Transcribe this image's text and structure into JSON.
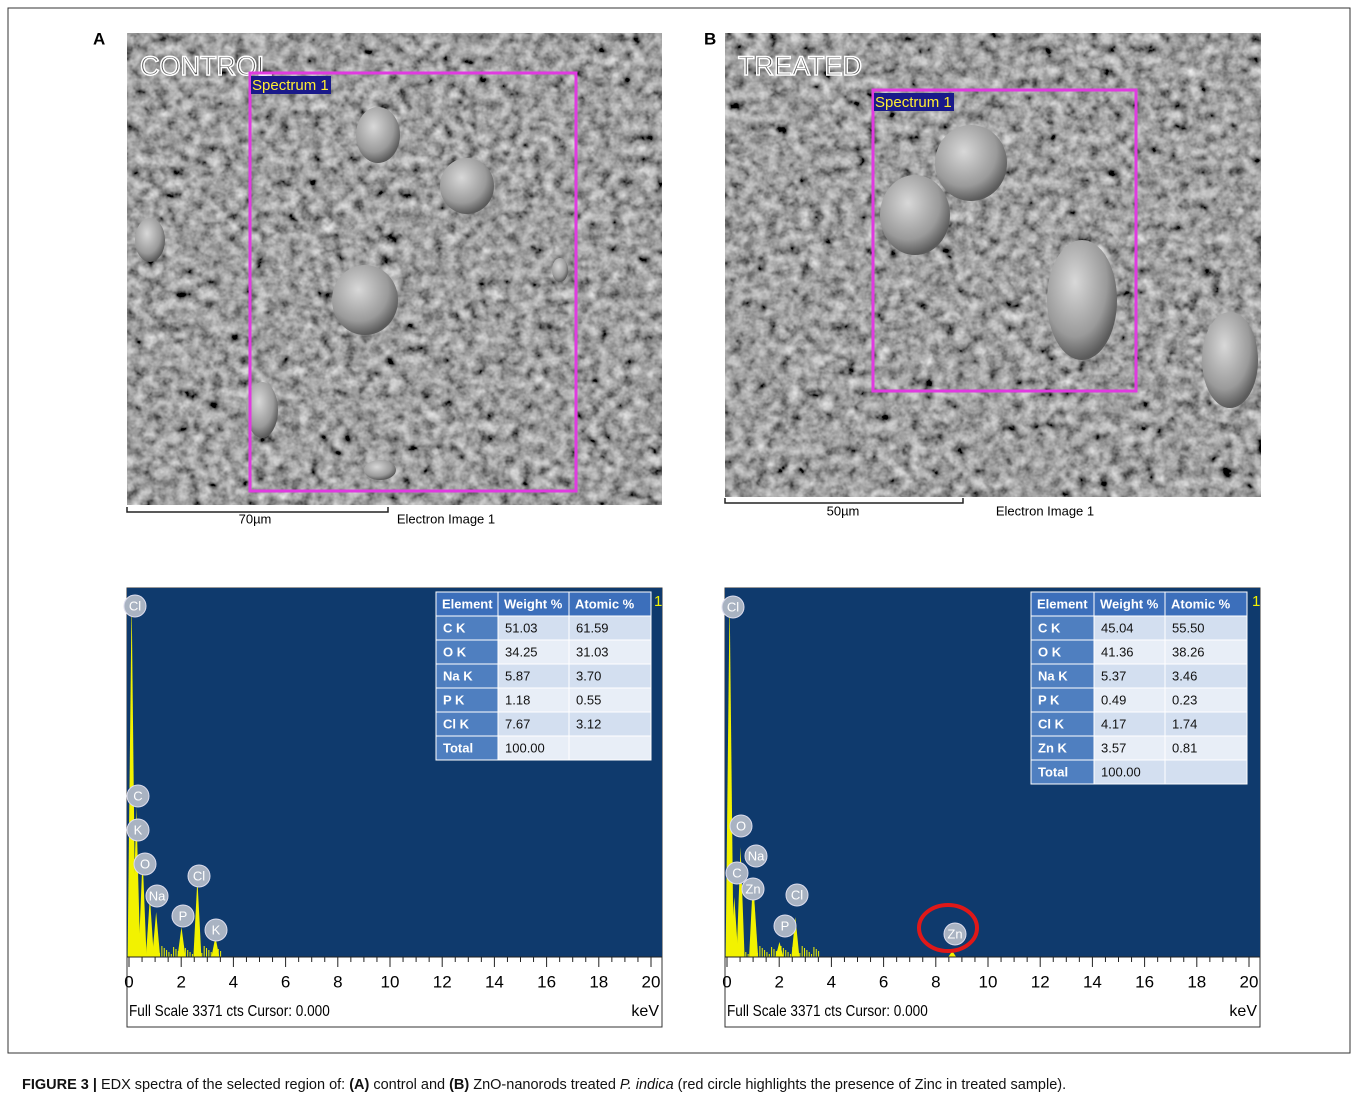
{
  "panels": [
    {
      "letter": "A",
      "sem": {
        "label": "CONTROL",
        "spectrum_label": "Spectrum 1",
        "scale_bar": "70µm",
        "image_name": "Electron Image 1"
      },
      "spectrum": {
        "table": {
          "columns": [
            "Element",
            "Weight %",
            "Atomic %"
          ],
          "rows": [
            [
              "C K",
              "51.03",
              "61.59"
            ],
            [
              "O K",
              "34.25",
              "31.03"
            ],
            [
              "Na K",
              "5.87",
              "3.70"
            ],
            [
              "P K",
              "1.18",
              "0.55"
            ],
            [
              "Cl K",
              "7.67",
              "3.12"
            ],
            [
              "Total",
              "100.00"
            ]
          ]
        },
        "corner_label": "1",
        "peak_labels": [
          "Cl",
          "C",
          "K",
          "O",
          "Na",
          "P",
          "Cl",
          "K"
        ],
        "x_ticks": [
          0,
          2,
          4,
          6,
          8,
          10,
          12,
          14,
          16,
          18,
          20
        ],
        "footer": "Full Scale 3371 cts Cursor: 0.000",
        "unit": "keV"
      }
    },
    {
      "letter": "B",
      "sem": {
        "label": "TREATED",
        "spectrum_label": "Spectrum 1",
        "scale_bar": "50µm",
        "image_name": "Electron Image 1"
      },
      "spectrum": {
        "table": {
          "columns": [
            "Element",
            "Weight %",
            "Atomic %"
          ],
          "rows": [
            [
              "C K",
              "45.04",
              "55.50"
            ],
            [
              "O K",
              "41.36",
              "38.26"
            ],
            [
              "Na K",
              "5.37",
              "3.46"
            ],
            [
              "P K",
              "0.49",
              "0.23"
            ],
            [
              "Cl K",
              "4.17",
              "1.74"
            ],
            [
              "Zn K",
              "3.57",
              "0.81"
            ],
            [
              "Total",
              "100.00"
            ]
          ]
        },
        "corner_label": "1",
        "peak_labels": [
          "Cl",
          "O",
          "Na",
          "C",
          "Zn",
          "P",
          "Cl",
          "Zn"
        ],
        "x_ticks": [
          0,
          2,
          4,
          6,
          8,
          10,
          12,
          14,
          16,
          18,
          20
        ],
        "footer": "Full Scale 3371 cts Cursor: 0.000",
        "unit": "keV"
      }
    }
  ],
  "caption": [
    "FIGURE 3 |",
    "EDX spectra of the selected region of:",
    "(A)",
    "control and",
    "(B)",
    "ZnO-nanorods treated",
    "P. indica",
    "(red circle highlights the presence of Zinc in treated sample)."
  ]
}
